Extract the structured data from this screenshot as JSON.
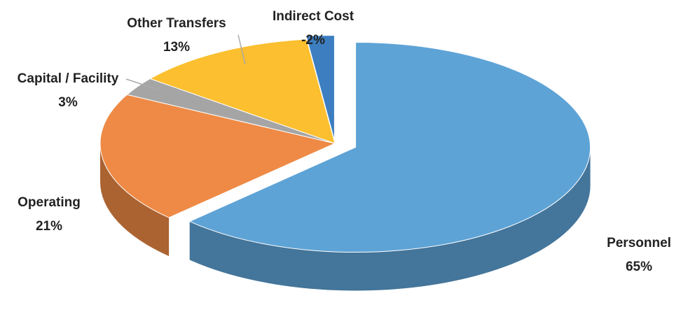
{
  "chart_data": {
    "type": "pie",
    "categories": [
      "Personnel",
      "Operating",
      "Capital / Facility",
      "Other Transfers",
      "Indirect Cost"
    ],
    "values": [
      65,
      21,
      3,
      13,
      -2
    ],
    "value_labels": [
      "65%",
      "21%",
      "3%",
      "13%",
      "-2%"
    ],
    "colors": [
      "#5ea3d6",
      "#ee8a45",
      "#a5a5a5",
      "#fbbf2f",
      "#3c7ec0"
    ]
  }
}
